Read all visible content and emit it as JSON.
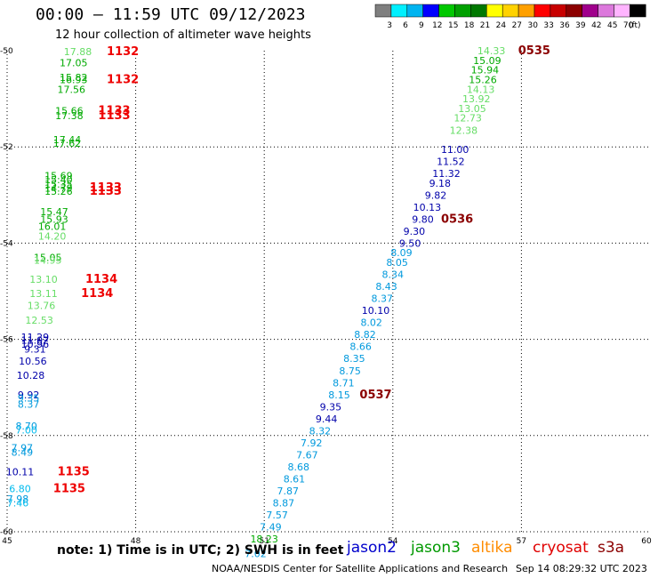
{
  "header": {
    "title": "00:00 – 11:59 UTC 09/12/2023",
    "subtitle": "12 hour collection of altimeter wave heights"
  },
  "colorbar": {
    "unit": "(ft)",
    "bins": [
      {
        "label": "3",
        "color": "#7f7f7f"
      },
      {
        "label": "6",
        "color": "#00f0ff"
      },
      {
        "label": "9",
        "color": "#00b4f0"
      },
      {
        "label": "12",
        "color": "#0000ff"
      },
      {
        "label": "15",
        "color": "#00c800"
      },
      {
        "label": "18",
        "color": "#00a000"
      },
      {
        "label": "21",
        "color": "#007800"
      },
      {
        "label": "24",
        "color": "#ffff00"
      },
      {
        "label": "27",
        "color": "#ffd200"
      },
      {
        "label": "30",
        "color": "#ffa000"
      },
      {
        "label": "33",
        "color": "#ff0000"
      },
      {
        "label": "36",
        "color": "#c80000"
      },
      {
        "label": "39",
        "color": "#8c0000"
      },
      {
        "label": "42",
        "color": "#a0008c"
      },
      {
        "label": "45",
        "color": "#dc78dc"
      },
      {
        "label": "70",
        "color": "#ffb4ff"
      },
      {
        "label": "",
        "color": "#000000"
      }
    ]
  },
  "footer": {
    "note": "note: 1) Time is in UTC; 2) SWH is in feet",
    "credit": "NOAA/NESDIS Center for Satellite Applications and Research",
    "timestamp": "Sep 14 08:29:32 UTC 2023",
    "legend": [
      {
        "label": "jason2",
        "color": "#0000cc"
      },
      {
        "label": "jason3",
        "color": "#009900"
      },
      {
        "label": "altika",
        "color": "#ff8c00"
      },
      {
        "label": "cryosat",
        "color": "#e00000"
      },
      {
        "label": "s3a",
        "color": "#8b0000"
      }
    ]
  },
  "chart_data": {
    "type": "scatter",
    "title": "00:00 – 11:59 UTC 09/12/2023",
    "xlim": [
      45,
      60
    ],
    "ylim": [
      -60,
      -50
    ],
    "x_ticks": [
      "45",
      "48",
      "51",
      "54",
      "57",
      "60"
    ],
    "y_ticks": [
      "-50",
      "-52",
      "-54",
      "-56",
      "-58",
      "-60"
    ],
    "grid": true,
    "series": [
      {
        "name": "track_west",
        "points": [
          {
            "x": 46.65,
            "y": -50.02,
            "v": "17.88",
            "c": "#66dd66"
          },
          {
            "x": 46.55,
            "y": -50.25,
            "v": "17.05",
            "c": "#00aa00"
          },
          {
            "x": 46.55,
            "y": -50.55,
            "v": "15.82",
            "c": "#00aa00"
          },
          {
            "x": 46.55,
            "y": -50.6,
            "v": "16.93",
            "c": "#00aa00"
          },
          {
            "x": 46.5,
            "y": -50.8,
            "v": "17.56",
            "c": "#00aa00"
          },
          {
            "x": 46.45,
            "y": -51.25,
            "v": "15.66",
            "c": "#00aa00"
          },
          {
            "x": 46.45,
            "y": -51.35,
            "v": "17.38",
            "c": "#00aa00"
          },
          {
            "x": 46.4,
            "y": -51.85,
            "v": "17.44",
            "c": "#00aa00"
          },
          {
            "x": 46.4,
            "y": -51.92,
            "v": "17.62",
            "c": "#00aa00"
          },
          {
            "x": 46.2,
            "y": -52.6,
            "v": "15.69",
            "c": "#00aa00"
          },
          {
            "x": 46.2,
            "y": -52.68,
            "v": "15.40",
            "c": "#00aa00"
          },
          {
            "x": 46.2,
            "y": -52.77,
            "v": "15.35",
            "c": "#00aa00"
          },
          {
            "x": 46.2,
            "y": -52.86,
            "v": "14.79",
            "c": "#00aa00"
          },
          {
            "x": 46.2,
            "y": -52.92,
            "v": "15.26",
            "c": "#00aa00"
          },
          {
            "x": 46.1,
            "y": -53.35,
            "v": "15.47",
            "c": "#00aa00"
          },
          {
            "x": 46.1,
            "y": -53.5,
            "v": "15.93",
            "c": "#00aa00"
          },
          {
            "x": 46.05,
            "y": -53.65,
            "v": "16.01",
            "c": "#00aa00"
          },
          {
            "x": 46.05,
            "y": -53.85,
            "v": "14.20",
            "c": "#66dd66"
          },
          {
            "x": 45.95,
            "y": -54.3,
            "v": "15.05",
            "c": "#00aa00"
          },
          {
            "x": 45.95,
            "y": -54.35,
            "v": "14.95",
            "c": "#66dd66"
          },
          {
            "x": 45.85,
            "y": -54.75,
            "v": "13.10",
            "c": "#66dd66"
          },
          {
            "x": 45.85,
            "y": -55.05,
            "v": "13.11",
            "c": "#66dd66"
          },
          {
            "x": 45.8,
            "y": -55.3,
            "v": "13.76",
            "c": "#66dd66"
          },
          {
            "x": 45.75,
            "y": -55.6,
            "v": "12.53",
            "c": "#66dd66"
          },
          {
            "x": 45.65,
            "y": -55.95,
            "v": "11.29",
            "c": "#0000aa"
          },
          {
            "x": 45.65,
            "y": -56.02,
            "v": "11.02",
            "c": "#0000aa"
          },
          {
            "x": 45.65,
            "y": -56.1,
            "v": "10.96",
            "c": "#0000aa"
          },
          {
            "x": 45.65,
            "y": -56.2,
            "v": "9.31",
            "c": "#0000aa"
          },
          {
            "x": 45.6,
            "y": -56.45,
            "v": "10.56",
            "c": "#0000aa"
          },
          {
            "x": 45.55,
            "y": -56.75,
            "v": "10.28",
            "c": "#0000aa"
          },
          {
            "x": 45.5,
            "y": -57.15,
            "v": "9.92",
            "c": "#0000aa"
          },
          {
            "x": 45.5,
            "y": -57.22,
            "v": "9.35",
            "c": "#0099dd"
          },
          {
            "x": 45.5,
            "y": -57.35,
            "v": "8.37",
            "c": "#0099dd"
          },
          {
            "x": 45.45,
            "y": -57.8,
            "v": "8.70",
            "c": "#0099dd"
          },
          {
            "x": 45.45,
            "y": -57.88,
            "v": "7.00",
            "c": "#00bbee"
          },
          {
            "x": 45.35,
            "y": -58.25,
            "v": "7.97",
            "c": "#0099dd"
          },
          {
            "x": 45.35,
            "y": -58.35,
            "v": "8.49",
            "c": "#0099dd"
          },
          {
            "x": 45.3,
            "y": -58.75,
            "v": "10.11",
            "c": "#0000aa"
          },
          {
            "x": 45.3,
            "y": -59.1,
            "v": "6.80",
            "c": "#00bbee"
          },
          {
            "x": 45.25,
            "y": -59.32,
            "v": "7.98",
            "c": "#0099dd"
          },
          {
            "x": 45.25,
            "y": -59.4,
            "v": "7.46",
            "c": "#00bbee"
          }
        ]
      },
      {
        "name": "track_east",
        "points": [
          {
            "x": 56.3,
            "y": -50.0,
            "v": "14.33",
            "c": "#66dd66"
          },
          {
            "x": 56.2,
            "y": -50.2,
            "v": "15.09",
            "c": "#00aa00"
          },
          {
            "x": 56.15,
            "y": -50.4,
            "v": "15.94",
            "c": "#00aa00"
          },
          {
            "x": 56.1,
            "y": -50.6,
            "v": "15.26",
            "c": "#00aa00"
          },
          {
            "x": 56.05,
            "y": -50.8,
            "v": "14.13",
            "c": "#66dd66"
          },
          {
            "x": 55.95,
            "y": -51.0,
            "v": "13.92",
            "c": "#66dd66"
          },
          {
            "x": 55.85,
            "y": -51.2,
            "v": "13.05",
            "c": "#66dd66"
          },
          {
            "x": 55.75,
            "y": -51.4,
            "v": "12.73",
            "c": "#66dd66"
          },
          {
            "x": 55.65,
            "y": -51.65,
            "v": "12.38",
            "c": "#66dd66"
          },
          {
            "x": 55.45,
            "y": -52.05,
            "v": "11.00",
            "c": "#0000aa"
          },
          {
            "x": 55.35,
            "y": -52.3,
            "v": "11.52",
            "c": "#0000aa"
          },
          {
            "x": 55.25,
            "y": -52.55,
            "v": "11.32",
            "c": "#0000aa"
          },
          {
            "x": 55.1,
            "y": -52.75,
            "v": "9.18",
            "c": "#0000aa"
          },
          {
            "x": 55.0,
            "y": -53.0,
            "v": "9.82",
            "c": "#0000aa"
          },
          {
            "x": 54.8,
            "y": -53.25,
            "v": "10.13",
            "c": "#0000aa"
          },
          {
            "x": 54.7,
            "y": -53.5,
            "v": "9.80",
            "c": "#0000aa"
          },
          {
            "x": 54.5,
            "y": -53.75,
            "v": "9.30",
            "c": "#0000aa"
          },
          {
            "x": 54.4,
            "y": -54.0,
            "v": "9.50",
            "c": "#0000aa"
          },
          {
            "x": 54.2,
            "y": -54.2,
            "v": "8.09",
            "c": "#0099dd"
          },
          {
            "x": 54.1,
            "y": -54.4,
            "v": "8.05",
            "c": "#0099dd"
          },
          {
            "x": 54.0,
            "y": -54.65,
            "v": "8.34",
            "c": "#0099dd"
          },
          {
            "x": 53.85,
            "y": -54.9,
            "v": "8.43",
            "c": "#0099dd"
          },
          {
            "x": 53.75,
            "y": -55.15,
            "v": "8.37",
            "c": "#0099dd"
          },
          {
            "x": 53.6,
            "y": -55.4,
            "v": "10.10",
            "c": "#0000aa"
          },
          {
            "x": 53.5,
            "y": -55.65,
            "v": "8.02",
            "c": "#0099dd"
          },
          {
            "x": 53.35,
            "y": -55.9,
            "v": "8.82",
            "c": "#0099dd"
          },
          {
            "x": 53.25,
            "y": -56.15,
            "v": "8.66",
            "c": "#0099dd"
          },
          {
            "x": 53.1,
            "y": -56.4,
            "v": "8.35",
            "c": "#0099dd"
          },
          {
            "x": 53.0,
            "y": -56.65,
            "v": "8.75",
            "c": "#0099dd"
          },
          {
            "x": 52.85,
            "y": -56.9,
            "v": "8.71",
            "c": "#0099dd"
          },
          {
            "x": 52.75,
            "y": -57.15,
            "v": "8.15",
            "c": "#0099dd"
          },
          {
            "x": 52.55,
            "y": -57.4,
            "v": "9.35",
            "c": "#0000aa"
          },
          {
            "x": 52.45,
            "y": -57.65,
            "v": "9.44",
            "c": "#0000aa"
          },
          {
            "x": 52.3,
            "y": -57.9,
            "v": "8.32",
            "c": "#0099dd"
          },
          {
            "x": 52.1,
            "y": -58.15,
            "v": "7.92",
            "c": "#0099dd"
          },
          {
            "x": 52.0,
            "y": -58.4,
            "v": "7.67",
            "c": "#0099dd"
          },
          {
            "x": 51.8,
            "y": -58.65,
            "v": "8.68",
            "c": "#0099dd"
          },
          {
            "x": 51.7,
            "y": -58.9,
            "v": "8.61",
            "c": "#0099dd"
          },
          {
            "x": 51.55,
            "y": -59.15,
            "v": "7.87",
            "c": "#0099dd"
          },
          {
            "x": 51.45,
            "y": -59.4,
            "v": "8.87",
            "c": "#0099dd"
          },
          {
            "x": 51.3,
            "y": -59.65,
            "v": "7.57",
            "c": "#0099dd"
          },
          {
            "x": 51.15,
            "y": -59.9,
            "v": "7.49",
            "c": "#0099dd"
          },
          {
            "x": 51.0,
            "y": -60.15,
            "v": "18.23",
            "c": "#00aa00"
          },
          {
            "x": 50.8,
            "y": -60.45,
            "v": "7.02",
            "c": "#0099dd"
          }
        ]
      },
      {
        "name": "time_labels",
        "points": [
          {
            "x": 47.7,
            "y": -50.02,
            "v": "1132",
            "c": "#ee0000"
          },
          {
            "x": 47.7,
            "y": -50.6,
            "v": "1132",
            "c": "#ee0000"
          },
          {
            "x": 47.5,
            "y": -51.25,
            "v": "1133",
            "c": "#ee0000"
          },
          {
            "x": 47.5,
            "y": -51.35,
            "v": "1133",
            "c": "#ee0000"
          },
          {
            "x": 47.3,
            "y": -52.85,
            "v": "1133",
            "c": "#ee0000"
          },
          {
            "x": 47.3,
            "y": -52.92,
            "v": "1133",
            "c": "#ee0000"
          },
          {
            "x": 47.2,
            "y": -54.75,
            "v": "1134",
            "c": "#ee0000"
          },
          {
            "x": 47.1,
            "y": -55.05,
            "v": "1134",
            "c": "#ee0000"
          },
          {
            "x": 46.55,
            "y": -58.75,
            "v": "1135",
            "c": "#ee0000"
          },
          {
            "x": 46.45,
            "y": -59.1,
            "v": "1135",
            "c": "#ee0000"
          },
          {
            "x": 57.3,
            "y": -50.0,
            "v": "0535",
            "c": "#8b0000"
          },
          {
            "x": 55.5,
            "y": -53.5,
            "v": "0536",
            "c": "#8b0000"
          },
          {
            "x": 53.6,
            "y": -57.15,
            "v": "0537",
            "c": "#8b0000"
          }
        ]
      }
    ]
  }
}
